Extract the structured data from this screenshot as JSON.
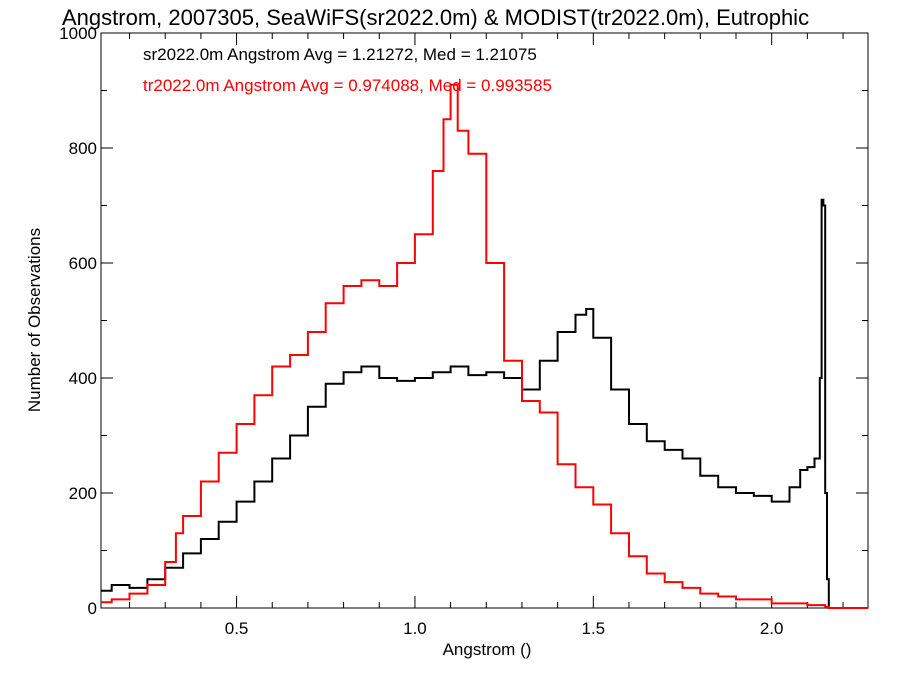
{
  "chart_data": {
    "type": "line",
    "title": "Angstrom, 2007305, SeaWiFS(sr2022.0m) & MODIST(tr2022.0m), Eutrophic",
    "xlabel": "Angstrom ()",
    "ylabel": "Number of Observations",
    "xlim": [
      0.12,
      2.27
    ],
    "ylim": [
      0,
      1000
    ],
    "xticks": [
      0.5,
      1.0,
      1.5,
      2.0
    ],
    "xtick_labels": [
      "0.5",
      "1.0",
      "1.5",
      "2.0"
    ],
    "yticks": [
      0,
      200,
      400,
      600,
      800,
      1000
    ],
    "ytick_labels": [
      "0",
      "200",
      "400",
      "600",
      "800",
      "1000"
    ],
    "grid": false,
    "legend_position": "top-left",
    "series": [
      {
        "name": "sr2022.0m Angstrom Avg = 1.21272, Med = 1.21075",
        "color": "#000000",
        "x": [
          0.12,
          0.15,
          0.2,
          0.25,
          0.3,
          0.35,
          0.4,
          0.45,
          0.5,
          0.55,
          0.6,
          0.65,
          0.7,
          0.75,
          0.8,
          0.85,
          0.9,
          0.95,
          1.0,
          1.05,
          1.1,
          1.15,
          1.2,
          1.25,
          1.3,
          1.35,
          1.4,
          1.45,
          1.48,
          1.5,
          1.55,
          1.6,
          1.65,
          1.7,
          1.75,
          1.8,
          1.85,
          1.9,
          1.95,
          2.0,
          2.05,
          2.08,
          2.1,
          2.12,
          2.135,
          2.14,
          2.145,
          2.15,
          2.155,
          2.16,
          2.17,
          2.27
        ],
        "values": [
          30,
          40,
          35,
          50,
          70,
          95,
          120,
          150,
          185,
          220,
          260,
          300,
          350,
          390,
          410,
          420,
          400,
          395,
          400,
          410,
          420,
          405,
          410,
          400,
          380,
          430,
          480,
          510,
          520,
          470,
          380,
          320,
          290,
          275,
          260,
          230,
          210,
          200,
          195,
          185,
          210,
          240,
          245,
          260,
          400,
          710,
          700,
          200,
          50,
          0,
          0,
          0
        ]
      },
      {
        "name": "tr2022.0m Angstrom Avg = 0.974088, Med = 0.993585",
        "color": "#ff0000",
        "x": [
          0.12,
          0.15,
          0.2,
          0.25,
          0.3,
          0.33,
          0.35,
          0.4,
          0.45,
          0.5,
          0.55,
          0.6,
          0.65,
          0.7,
          0.75,
          0.8,
          0.85,
          0.9,
          0.95,
          1.0,
          1.05,
          1.08,
          1.1,
          1.12,
          1.15,
          1.2,
          1.25,
          1.3,
          1.35,
          1.4,
          1.45,
          1.5,
          1.55,
          1.6,
          1.65,
          1.7,
          1.75,
          1.8,
          1.85,
          1.9,
          2.0,
          2.1,
          2.15,
          2.16,
          2.27
        ],
        "values": [
          10,
          15,
          25,
          40,
          80,
          130,
          160,
          220,
          270,
          320,
          370,
          420,
          440,
          480,
          530,
          560,
          570,
          560,
          600,
          650,
          760,
          850,
          910,
          830,
          790,
          600,
          430,
          360,
          340,
          250,
          210,
          180,
          130,
          90,
          60,
          45,
          35,
          25,
          20,
          15,
          8,
          5,
          2,
          0,
          0
        ]
      }
    ]
  }
}
